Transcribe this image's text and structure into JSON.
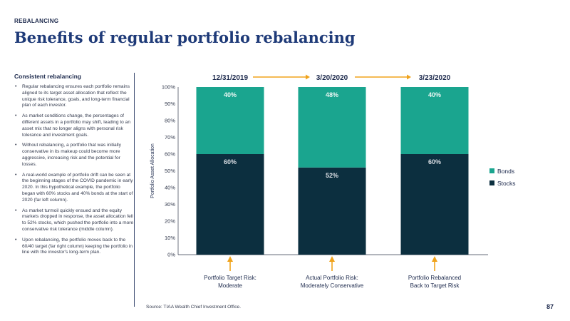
{
  "header": {
    "eyebrow": "REBALANCING",
    "title": "Benefits of regular portfolio rebalancing"
  },
  "sidebar": {
    "heading": "Consistent rebalancing",
    "bullets": [
      "Regular rebalancing ensures each portfolio remains aligned to its target asset allocation that reflect the unique risk tolerance, goals, and long-term financial plan of each investor.",
      "As market conditions change, the percentages of different assets in a portfolio may shift, leading to an asset mix that no longer aligns with personal risk tolerance and investment goals.",
      "Without rebalancing, a portfolio that was initially conservative in its makeup could become more aggressive, increasing risk and the potential for losses.",
      "A real-world example of portfolio drift can be seen at the beginning stages of the COVID pandemic in early 2020. In this hypothetical example, the portfolio began with 60% stocks and 40% bonds at the start of 2020 (far left column).",
      "As market turmoil quickly ensued and the equity markets dropped in response, the asset allocation fell to 52% stocks, which pushed the portfolio into a more conservative risk tolerance (middle column).",
      "Upon rebalancing, the portfolio moves back to the 60/40 target (far right column) keeping the portfolio in line with the investor's long-term plan."
    ]
  },
  "footer": {
    "source": "Source: TIAA Wealth Chief Investment Office.",
    "page_number": "87"
  },
  "colors": {
    "stocks": "#0c2f3f",
    "bonds": "#1aa58f",
    "arrow": "#f0a31c",
    "title": "#1e3a78"
  },
  "chart_data": {
    "type": "bar",
    "stacked": true,
    "dates": [
      "12/31/2019",
      "3/20/2020",
      "3/23/2020"
    ],
    "categories": [
      [
        "Portfolio Target Risk:",
        "Moderate"
      ],
      [
        "Actual Portfolio Risk:",
        "Moderately Conservative"
      ],
      [
        "Portfolio Rebalanced",
        "Back to Target Risk"
      ]
    ],
    "series": [
      {
        "name": "Stocks",
        "values": [
          60,
          52,
          60
        ]
      },
      {
        "name": "Bonds",
        "values": [
          40,
          48,
          40
        ]
      }
    ],
    "ylabel": "Portfolio Asset Allocation",
    "ylim": [
      0,
      100
    ],
    "yticks": [
      "0%",
      "10%",
      "20%",
      "30%",
      "40%",
      "50%",
      "60%",
      "70%",
      "80%",
      "90%",
      "100%"
    ],
    "legend_position": "right",
    "grid": false
  }
}
